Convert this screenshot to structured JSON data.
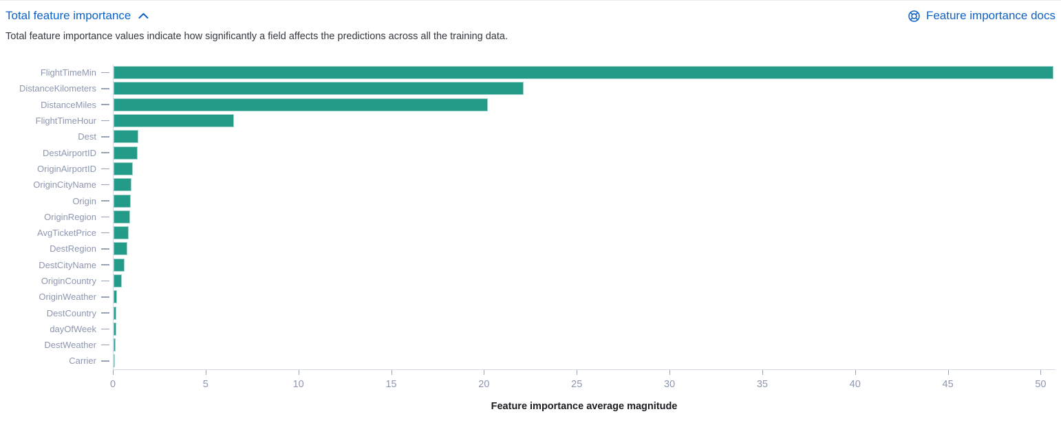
{
  "header": {
    "title": "Total feature importance",
    "title_icon": "chevron-up",
    "docs_link_label": "Feature importance docs",
    "docs_icon": "life-ring-help"
  },
  "description": "Total feature importance values indicate how significantly a field affects the predictions across all the training data.",
  "colors": {
    "link_blue": "#0d62c8",
    "bar_fill": "#239b88",
    "axis_line": "#d3d9e3",
    "axis_text": "#8c96af",
    "tick_mark": "#98a2b3",
    "description_text": "#343741",
    "axis_title_text": "#1a1c21"
  },
  "chart_data": {
    "type": "bar",
    "orientation": "horizontal",
    "title": "Total feature importance",
    "xlabel": "Feature importance average magnitude",
    "categories": [
      "FlightTimeMin",
      "DistanceKilometers",
      "DistanceMiles",
      "FlightTimeHour",
      "Dest",
      "DestAirportID",
      "OriginAirportID",
      "OriginCityName",
      "Origin",
      "OriginRegion",
      "AvgTicketPrice",
      "DestRegion",
      "DestCityName",
      "OriginCountry",
      "OriginWeather",
      "DestCountry",
      "dayOfWeek",
      "DestWeather",
      "Carrier"
    ],
    "values": [
      50.7,
      22.1,
      20.2,
      6.5,
      1.35,
      1.3,
      1.05,
      0.95,
      0.92,
      0.88,
      0.83,
      0.73,
      0.6,
      0.43,
      0.17,
      0.15,
      0.14,
      0.12,
      0.05
    ],
    "xticks": [
      0,
      5,
      10,
      15,
      20,
      25,
      30,
      35,
      40,
      45,
      50
    ],
    "xlim": [
      0,
      50.8
    ],
    "grid": false,
    "legend": false,
    "bar_color": "#239b88"
  }
}
